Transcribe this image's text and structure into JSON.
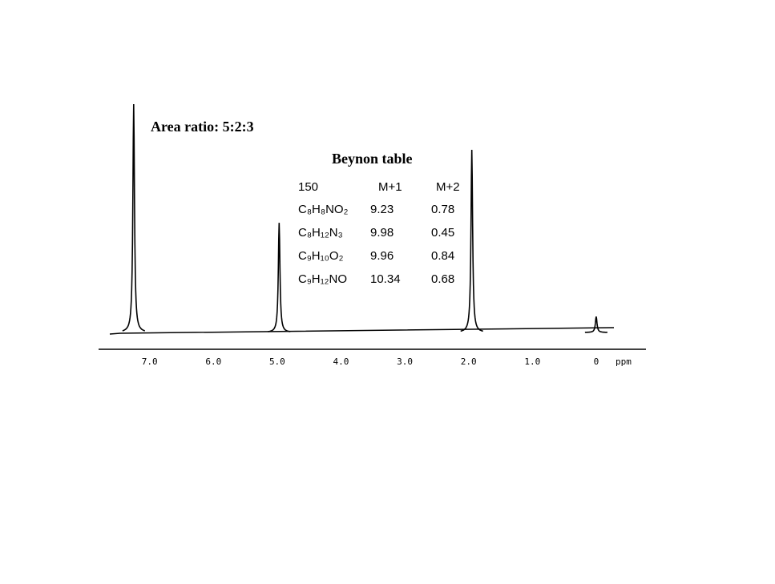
{
  "chart_data": {
    "type": "nmr",
    "annotation": "Area ratio: 5:2:3",
    "x": [
      7.25,
      4.97,
      1.95,
      0
    ],
    "values": [
      100,
      48,
      80,
      7
    ],
    "color": "#000000",
    "xlim": [
      7.8,
      -0.78
    ],
    "xticks": [
      {
        "value": 7,
        "label": "7.0"
      },
      {
        "value": 6,
        "label": "6.0"
      },
      {
        "value": 5,
        "label": "5.0"
      },
      {
        "value": 4,
        "label": "4.0"
      },
      {
        "value": 3,
        "label": "3.0"
      },
      {
        "value": 2,
        "label": "2.0"
      },
      {
        "value": 1,
        "label": "1.0"
      },
      0
    ],
    "x_label": "ppm",
    "table": {
      "title": "Beynon table",
      "header": [
        "150",
        "M+1",
        "M+2"
      ],
      "rows": [
        [
          "C₈H₈NO₂",
          9.23,
          0.78
        ],
        [
          "C₈H₁₂N₃",
          9.98,
          0.45
        ],
        [
          "C₉H₁₀O₂",
          9.96,
          0.84
        ],
        [
          "C₉H₁₂NO",
          10.34,
          0.68
        ]
      ]
    }
  }
}
